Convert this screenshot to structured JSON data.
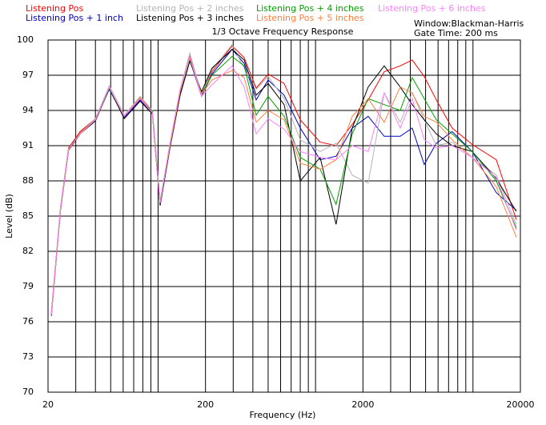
{
  "chart_data": {
    "type": "line",
    "title": "1/3 Octave Frequency Response",
    "annotations": [
      "Window:Blackman-Harris",
      "Gate Time: 200 ms"
    ],
    "x_label": "Frequency (Hz)",
    "y_label": "Level (dB)",
    "x_log": true,
    "grid": true,
    "xlim": [
      20,
      20000
    ],
    "xticks": [
      20,
      200,
      2000,
      20000
    ],
    "xminor": [
      30,
      40,
      50,
      60,
      70,
      80,
      90,
      100,
      300,
      400,
      500,
      600,
      700,
      800,
      900,
      1000,
      3000,
      4000,
      5000,
      6000,
      7000,
      8000,
      9000,
      10000
    ],
    "ylim": [
      70,
      100
    ],
    "yticks": [
      70,
      73,
      76,
      79,
      82,
      85,
      88,
      91,
      94,
      97,
      100
    ],
    "x": [
      21,
      24,
      27,
      32,
      40,
      49,
      61,
      77,
      92,
      103,
      119,
      138,
      159,
      189,
      220,
      295,
      352,
      420,
      500,
      632,
      800,
      1070,
      1350,
      1710,
      2160,
      2730,
      3450,
      4110,
      4900,
      5850,
      7380,
      9900,
      14060,
      18840
    ],
    "series": [
      {
        "name": "Listening Pos",
        "color": "#ff0000",
        "values": [
          76.8,
          85.7,
          90.8,
          92.2,
          93.3,
          96.0,
          93.5,
          95.1,
          93.9,
          86.2,
          91.1,
          95.6,
          98.6,
          95.4,
          97.3,
          99.5,
          98.5,
          95.9,
          97.1,
          96.3,
          93.2,
          91.3,
          91.0,
          92.8,
          94.9,
          97.3,
          97.8,
          98.3,
          96.9,
          94.9,
          92.5,
          91.1,
          89.8,
          84.7
        ]
      },
      {
        "name": "Listening Pos + 1 inch",
        "color": "#0000c0",
        "values": [
          76.7,
          85.6,
          90.6,
          92.0,
          93.2,
          95.8,
          93.4,
          94.9,
          93.8,
          86.0,
          91.0,
          95.4,
          98.3,
          95.2,
          97.1,
          99.2,
          98.0,
          94.9,
          96.6,
          95.3,
          92.5,
          89.8,
          90.1,
          92.5,
          93.5,
          91.8,
          91.8,
          92.5,
          89.4,
          91.2,
          92.2,
          90.5,
          87.0,
          85.5
        ]
      },
      {
        "name": "Listening Pos + 2 inches",
        "color": "#b4b4b4",
        "values": [
          76.7,
          85.6,
          90.7,
          92.1,
          93.3,
          96.1,
          93.6,
          95.2,
          94.0,
          86.3,
          91.2,
          95.8,
          98.9,
          95.3,
          97.5,
          99.6,
          97.6,
          95.8,
          96.9,
          95.0,
          91.5,
          90.5,
          91.2,
          88.5,
          87.8,
          95.5,
          93.0,
          95.5,
          93.2,
          91.0,
          91.3,
          90.0,
          88.5,
          84.3
        ]
      },
      {
        "name": "Listening Pos + 3 inches",
        "color": "#000000",
        "values": [
          76.5,
          85.5,
          90.6,
          92.0,
          93.1,
          95.9,
          93.3,
          94.8,
          93.7,
          85.9,
          90.8,
          95.3,
          98.2,
          95.6,
          97.6,
          99.2,
          98.3,
          95.3,
          96.3,
          94.5,
          88.0,
          90.0,
          84.3,
          92.5,
          96.0,
          97.8,
          96.0,
          94.5,
          93.2,
          92.0,
          91.0,
          90.5,
          88.2,
          85.4
        ]
      },
      {
        "name": "Listening Pos + 4 inches",
        "color": "#00a000",
        "values": [
          76.6,
          85.7,
          90.7,
          92.1,
          93.2,
          95.9,
          93.5,
          95.0,
          93.9,
          86.1,
          91.0,
          95.6,
          98.4,
          95.4,
          97.0,
          98.6,
          97.8,
          93.6,
          95.2,
          93.5,
          90.0,
          89.0,
          86.0,
          92.0,
          95.0,
          94.5,
          94.0,
          96.8,
          95.0,
          93.2,
          92.0,
          90.5,
          88.0,
          84.0
        ]
      },
      {
        "name": "Listening Pos + 5 inches",
        "color": "#ff8040",
        "values": [
          76.6,
          85.6,
          90.6,
          92.1,
          93.2,
          96.0,
          93.5,
          95.1,
          93.8,
          86.2,
          91.0,
          95.6,
          98.5,
          95.4,
          96.6,
          97.4,
          96.8,
          93.0,
          94.0,
          93.2,
          89.5,
          89.0,
          89.8,
          93.5,
          95.0,
          93.0,
          96.0,
          95.5,
          93.5,
          93.0,
          91.5,
          90.0,
          87.5,
          83.2
        ]
      },
      {
        "name": "Listening Pos + 6 inches",
        "color": "#ff80ff",
        "values": [
          76.6,
          85.6,
          90.7,
          92.0,
          93.2,
          96.0,
          93.5,
          95.0,
          93.8,
          86.1,
          91.2,
          95.8,
          98.5,
          95.2,
          96.2,
          97.8,
          96.0,
          92.0,
          93.3,
          92.4,
          90.5,
          90.0,
          89.8,
          91.0,
          90.5,
          95.5,
          92.5,
          95.0,
          91.5,
          90.8,
          91.0,
          90.0,
          88.3,
          83.8
        ]
      }
    ]
  }
}
